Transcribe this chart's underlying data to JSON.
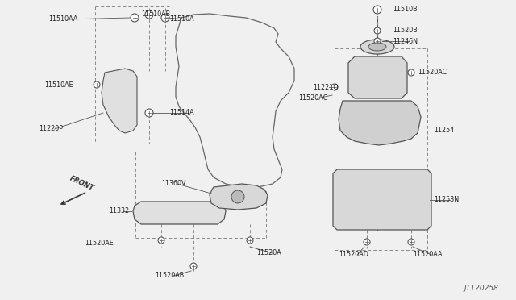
{
  "bg_color": "#f0f0f0",
  "line_color": "#555555",
  "text_color": "#222222",
  "fig_width": 6.4,
  "fig_height": 3.72,
  "dpi": 100,
  "watermark": "J1120258",
  "xlim": [
    0,
    640
  ],
  "ylim": [
    0,
    372
  ]
}
